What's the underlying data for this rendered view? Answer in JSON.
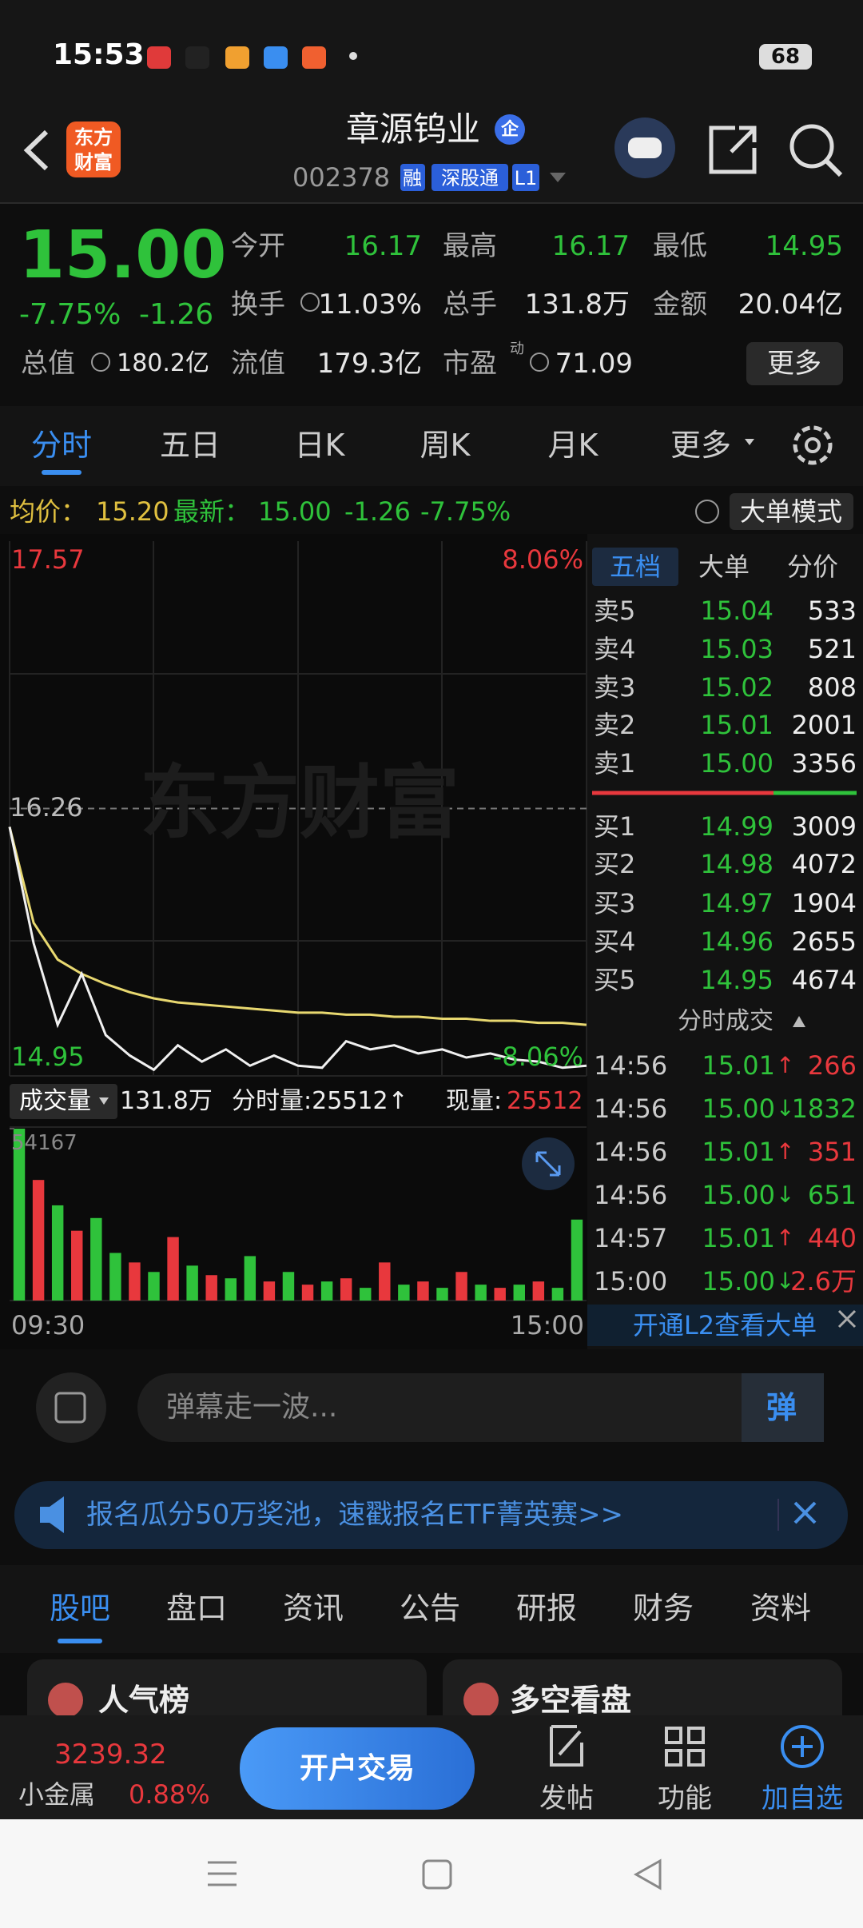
{
  "status_bar": {
    "time": "15:53",
    "battery": "68"
  },
  "header": {
    "logo": [
      "东方",
      "财富"
    ],
    "title": "章源钨业",
    "badge": "企",
    "code": "002378",
    "tags": [
      "融",
      "深股通",
      "L1"
    ]
  },
  "quote": {
    "price": "15.00",
    "change_pct": "-7.75%",
    "change": "-1.26",
    "fields": [
      {
        "label": "今开",
        "value": "16.17",
        "color": "#2fc23b"
      },
      {
        "label": "最高",
        "value": "16.17",
        "color": "#2fc23b"
      },
      {
        "label": "最低",
        "value": "14.95",
        "color": "#2fc23b"
      },
      {
        "label": "换手",
        "value": "11.03%",
        "color": "#e6e6e6"
      },
      {
        "label": "总手",
        "value": "131.8万",
        "color": "#e6e6e6"
      },
      {
        "label": "金额",
        "value": "20.04亿",
        "color": "#e6e6e6"
      },
      {
        "label": "总值",
        "value": "180.2亿",
        "color": "#e6e6e6"
      },
      {
        "label": "流值",
        "value": "179.3亿",
        "color": "#e6e6e6"
      },
      {
        "label": "市盈",
        "value": "71.09",
        "color": "#e6e6e6"
      }
    ],
    "pe_tag": "动",
    "more": "更多"
  },
  "tabs": [
    "分时",
    "五日",
    "日K",
    "周K",
    "月K",
    "更多"
  ],
  "info_line": {
    "avg_label": "均价：",
    "avg": "15.20",
    "latest_label": "最新：",
    "latest": "15.00",
    "change": "-1.26",
    "change_pct": "-7.75%",
    "mode_button": "大单模式"
  },
  "intraday_chart": {
    "ylim": [
      14.95,
      17.57
    ],
    "yticks": [
      17.57,
      16.26,
      14.95
    ],
    "pct_labels": [
      "8.06%",
      "-8.06%"
    ],
    "watermark": "东方财富",
    "x_labels": [
      "09:30",
      "15:00"
    ],
    "price_color": "#f0f0f0",
    "average_color": "#e8d870",
    "price": [
      16.17,
      15.6,
      15.2,
      15.45,
      15.15,
      15.05,
      14.98,
      15.1,
      15.02,
      15.08,
      15.0,
      15.05,
      15.0,
      14.99,
      15.12,
      15.08,
      15.1,
      15.06,
      15.08,
      15.04,
      15.06,
      15.03,
      15.02,
      14.99,
      15.0
    ],
    "average": [
      16.17,
      15.7,
      15.52,
      15.45,
      15.4,
      15.36,
      15.33,
      15.31,
      15.3,
      15.29,
      15.28,
      15.27,
      15.26,
      15.26,
      15.25,
      15.25,
      15.24,
      15.24,
      15.23,
      15.23,
      15.22,
      15.22,
      15.21,
      15.21,
      15.2
    ]
  },
  "volume_bar": {
    "label": "成交量",
    "total": "131.8万",
    "minute_vol": "分时量:25512↑",
    "current_label": "现量:",
    "current": "25512"
  },
  "volume_chart": {
    "ylim": [
      0,
      54167
    ],
    "yticks": [
      54167
    ],
    "values": [
      54167,
      38000,
      30000,
      22000,
      26000,
      15000,
      12000,
      9000,
      20000,
      11000,
      8000,
      7000,
      14000,
      6000,
      9000,
      5000,
      6000,
      7000,
      4000,
      12000,
      5000,
      6000,
      4000,
      9000,
      5000,
      4000,
      5000,
      6000,
      4000,
      25512
    ],
    "colors": [
      "#2fc23b",
      "#e8383d",
      "#2fc23b",
      "#e8383d",
      "#2fc23b",
      "#2fc23b",
      "#e8383d",
      "#2fc23b",
      "#e8383d",
      "#2fc23b",
      "#e8383d",
      "#2fc23b",
      "#2fc23b",
      "#e8383d",
      "#2fc23b",
      "#e8383d",
      "#2fc23b",
      "#e8383d",
      "#2fc23b",
      "#e8383d",
      "#2fc23b",
      "#e8383d",
      "#2fc23b",
      "#e8383d",
      "#2fc23b",
      "#e8383d",
      "#2fc23b",
      "#e8383d",
      "#2fc23b",
      "#2fc23b"
    ]
  },
  "order_book": {
    "tabs": [
      "五档",
      "大单",
      "分价"
    ],
    "asks": [
      {
        "label": "卖5",
        "price": "15.04",
        "volume": "533"
      },
      {
        "label": "卖4",
        "price": "15.03",
        "volume": "521"
      },
      {
        "label": "卖3",
        "price": "15.02",
        "volume": "808"
      },
      {
        "label": "卖2",
        "price": "15.01",
        "volume": "2001"
      },
      {
        "label": "卖1",
        "price": "15.00",
        "volume": "3356"
      }
    ],
    "bids": [
      {
        "label": "买1",
        "price": "14.99",
        "volume": "3009"
      },
      {
        "label": "买2",
        "price": "14.98",
        "volume": "4072"
      },
      {
        "label": "买3",
        "price": "14.97",
        "volume": "1904"
      },
      {
        "label": "买4",
        "price": "14.96",
        "volume": "2655"
      },
      {
        "label": "买5",
        "price": "14.95",
        "volume": "4674"
      }
    ]
  },
  "trades": {
    "title": "分时成交",
    "rows": [
      {
        "time": "14:56",
        "price": "15.01",
        "dir": "↑",
        "volume": "266",
        "color": "#e8383d",
        "dir_color": "#e8383d"
      },
      {
        "time": "14:56",
        "price": "15.00",
        "dir": "↓",
        "volume": "1832",
        "color": "#2fc23b",
        "dir_color": "#2fc23b"
      },
      {
        "time": "14:56",
        "price": "15.01",
        "dir": "↑",
        "volume": "351",
        "color": "#e8383d",
        "dir_color": "#e8383d"
      },
      {
        "time": "14:56",
        "price": "15.00",
        "dir": "↓",
        "volume": "651",
        "color": "#2fc23b",
        "dir_color": "#2fc23b"
      },
      {
        "time": "14:57",
        "price": "15.01",
        "dir": "↑",
        "volume": "440",
        "color": "#e8383d",
        "dir_color": "#e8383d"
      },
      {
        "time": "15:00",
        "price": "15.00",
        "dir": "↓",
        "volume": "2.6万",
        "color": "#e8383d",
        "dir_color": "#2fc23b"
      }
    ],
    "l2_link": "开通L2查看大单"
  },
  "comment": {
    "placeholder": "弹幕走一波...",
    "button": "弹"
  },
  "banner": {
    "text": "报名瓜分50万奖池，速戳报名ETF菁英赛>>"
  },
  "bottom_tabs": [
    "股吧",
    "盘口",
    "资讯",
    "公告",
    "研报",
    "财务",
    "资料"
  ],
  "cards": [
    "人气榜",
    "多空看盘"
  ],
  "footer": {
    "index_value": "3239.32",
    "index_name": "小金属",
    "index_change": "0.88%",
    "trade_button": "开户交易",
    "actions": [
      "发帖",
      "功能",
      "加自选"
    ]
  }
}
